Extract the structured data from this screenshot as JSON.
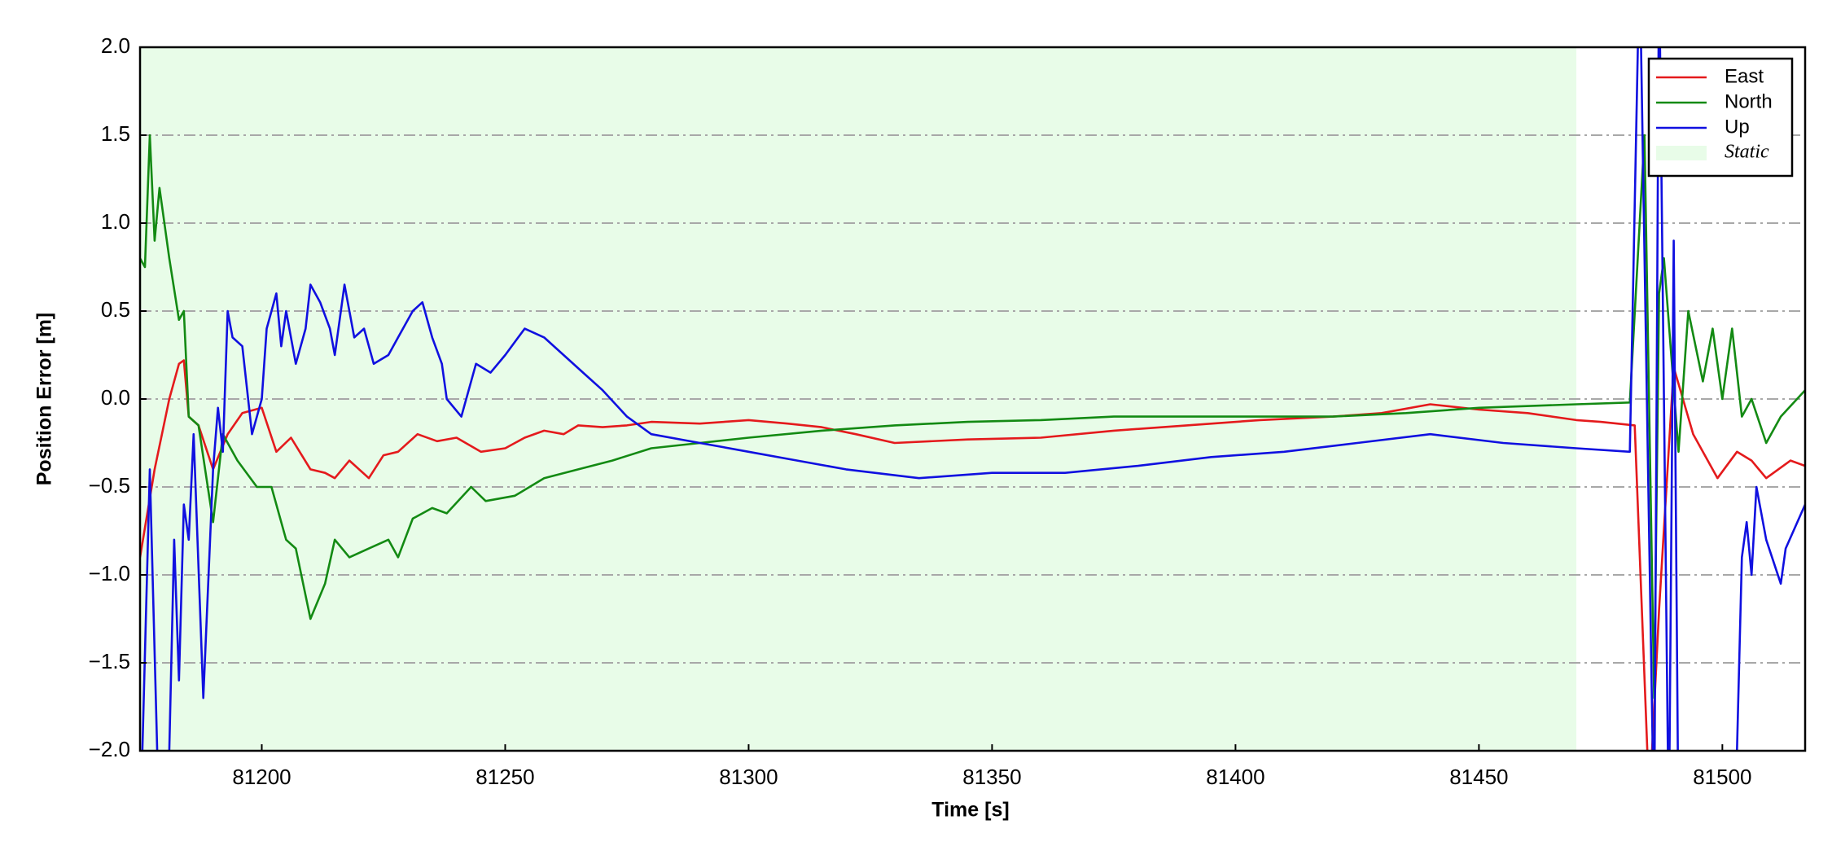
{
  "chart_data": {
    "type": "line",
    "xlabel": "Time [s]",
    "ylabel": "Position Error [m]",
    "xlim": [
      81175,
      81517
    ],
    "ylim": [
      -2,
      2
    ],
    "xticks": [
      81200,
      81250,
      81300,
      81350,
      81400,
      81450,
      81500
    ],
    "yticks": [
      {
        "value": -2,
        "label": "−2.0"
      },
      {
        "value": -1.5,
        "label": "−1.5"
      },
      {
        "value": -1,
        "label": "−1.0"
      },
      {
        "value": -0.5,
        "label": "−0.5"
      },
      {
        "value": 0,
        "label": "0.0"
      },
      {
        "value": 0.5,
        "label": "0.5"
      },
      {
        "value": 1,
        "label": "1.0"
      },
      {
        "value": 1.5,
        "label": "1.5"
      },
      {
        "value": 2,
        "label": "2.0"
      }
    ],
    "grid": true,
    "legend": "upper right",
    "spans": [
      {
        "name": "Static",
        "start": 81175,
        "end": 81470,
        "color": "#e8fce8"
      }
    ],
    "series": [
      {
        "name": "East",
        "color": "#e41a1c",
        "x": [
          81175,
          81178,
          81181,
          81183,
          81184,
          81185,
          81187,
          81190,
          81193,
          81196,
          81200,
          81203,
          81206,
          81210,
          81213,
          81215,
          81218,
          81222,
          81225,
          81228,
          81232,
          81236,
          81240,
          81245,
          81250,
          81254,
          81258,
          81262,
          81265,
          81270,
          81275,
          81280,
          81290,
          81300,
          81308,
          81315,
          81322,
          81330,
          81345,
          81360,
          81375,
          81390,
          81405,
          81420,
          81430,
          81440,
          81450,
          81460,
          81470,
          81475,
          81482,
          81485,
          81487,
          81490,
          81494,
          81499,
          81503,
          81506,
          81509,
          81514,
          81517
        ],
        "values": [
          -0.9,
          -0.4,
          0.0,
          0.2,
          0.22,
          -0.1,
          -0.15,
          -0.4,
          -0.2,
          -0.08,
          -0.05,
          -0.3,
          -0.22,
          -0.4,
          -0.42,
          -0.45,
          -0.35,
          -0.45,
          -0.32,
          -0.3,
          -0.2,
          -0.24,
          -0.22,
          -0.3,
          -0.28,
          -0.22,
          -0.18,
          -0.2,
          -0.15,
          -0.16,
          -0.15,
          -0.13,
          -0.14,
          -0.12,
          -0.14,
          -0.16,
          -0.2,
          -0.25,
          -0.23,
          -0.22,
          -0.18,
          -0.15,
          -0.12,
          -0.1,
          -0.08,
          -0.03,
          -0.06,
          -0.08,
          -0.12,
          -0.13,
          -0.15,
          -2.3,
          -1.2,
          0.18,
          -0.2,
          -0.45,
          -0.3,
          -0.35,
          -0.45,
          -0.35,
          -0.38
        ]
      },
      {
        "name": "North",
        "color": "#138a13",
        "x": [
          81175,
          81176,
          81177,
          81178,
          81179,
          81181,
          81183,
          81184,
          81185,
          81187,
          81190,
          81192,
          81195,
          81199,
          81202,
          81205,
          81207,
          81210,
          81213,
          81215,
          81218,
          81222,
          81226,
          81228,
          81231,
          81235,
          81238,
          81243,
          81246,
          81252,
          81258,
          81265,
          81272,
          81280,
          81290,
          81300,
          81315,
          81330,
          81345,
          81360,
          81375,
          81390,
          81405,
          81420,
          81435,
          81450,
          81470,
          81481,
          81484,
          81486,
          81487,
          81488,
          81491,
          81493,
          81496,
          81498,
          81500,
          81502,
          81504,
          81506,
          81509,
          81512,
          81517
        ],
        "values": [
          0.8,
          0.75,
          1.5,
          0.9,
          1.2,
          0.8,
          0.45,
          0.5,
          -0.1,
          -0.15,
          -0.7,
          -0.2,
          -0.35,
          -0.5,
          -0.5,
          -0.8,
          -0.85,
          -1.25,
          -1.05,
          -0.8,
          -0.9,
          -0.85,
          -0.8,
          -0.9,
          -0.68,
          -0.62,
          -0.65,
          -0.5,
          -0.58,
          -0.55,
          -0.45,
          -0.4,
          -0.35,
          -0.28,
          -0.25,
          -0.22,
          -0.18,
          -0.15,
          -0.13,
          -0.12,
          -0.1,
          -0.1,
          -0.1,
          -0.1,
          -0.08,
          -0.05,
          -0.03,
          -0.02,
          1.5,
          -1.7,
          0.6,
          0.8,
          -0.3,
          0.5,
          0.1,
          0.4,
          0.0,
          0.4,
          -0.1,
          0.0,
          -0.25,
          -0.1,
          0.05
        ]
      },
      {
        "name": "Up",
        "color": "#1010e0",
        "x": [
          81175,
          81177,
          81179,
          81181,
          81182,
          81183,
          81184,
          81185,
          81186,
          81188,
          81190,
          81191,
          81192,
          81193,
          81194,
          81196,
          81198,
          81200,
          81201,
          81203,
          81204,
          81205,
          81207,
          81209,
          81210,
          81212,
          81214,
          81215,
          81217,
          81219,
          81221,
          81223,
          81226,
          81228,
          81231,
          81233,
          81235,
          81237,
          81238,
          81241,
          81244,
          81247,
          81250,
          81254,
          81258,
          81262,
          81266,
          81270,
          81275,
          81280,
          81290,
          81300,
          81310,
          81320,
          81335,
          81350,
          81365,
          81380,
          81395,
          81410,
          81425,
          81440,
          81455,
          81470,
          81481,
          81483,
          81486,
          81487,
          81489,
          81490,
          81491,
          81502,
          81503,
          81504,
          81505,
          81506,
          81507,
          81509,
          81512,
          81513,
          81517
        ],
        "values": [
          -2.5,
          -0.4,
          -2.5,
          -2.0,
          -0.8,
          -1.6,
          -0.6,
          -0.8,
          -0.2,
          -1.7,
          -0.4,
          -0.05,
          -0.3,
          0.5,
          0.35,
          0.3,
          -0.2,
          0.0,
          0.4,
          0.6,
          0.3,
          0.5,
          0.2,
          0.4,
          0.65,
          0.55,
          0.4,
          0.25,
          0.65,
          0.35,
          0.4,
          0.2,
          0.25,
          0.35,
          0.5,
          0.55,
          0.35,
          0.2,
          0.0,
          -0.1,
          0.2,
          0.15,
          0.25,
          0.4,
          0.35,
          0.25,
          0.15,
          0.05,
          -0.1,
          -0.2,
          -0.25,
          -0.3,
          -0.35,
          -0.4,
          -0.45,
          -0.42,
          -0.42,
          -0.38,
          -0.33,
          -0.3,
          -0.25,
          -0.2,
          -0.25,
          -0.28,
          -0.3,
          2.5,
          -2.5,
          2.5,
          -2.5,
          0.9,
          -2.5,
          -2.5,
          -2.0,
          -0.9,
          -0.7,
          -1.0,
          -0.5,
          -0.8,
          -1.05,
          -0.85,
          -0.6
        ]
      }
    ]
  }
}
